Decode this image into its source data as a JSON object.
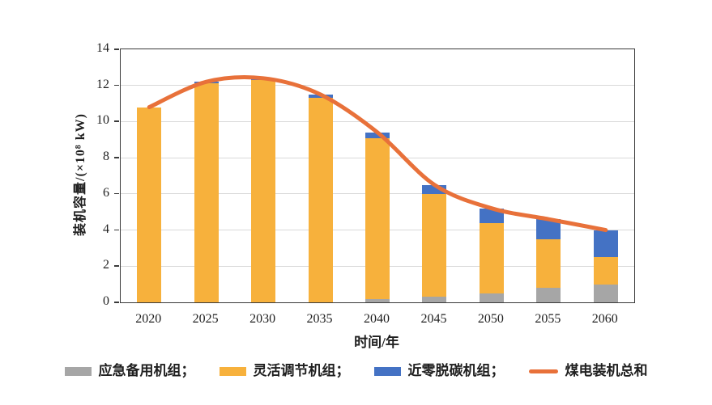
{
  "chart_data": {
    "type": "bar",
    "subtype": "stacked-bar-with-line",
    "categories": [
      "2020",
      "2025",
      "2030",
      "2035",
      "2040",
      "2045",
      "2050",
      "2055",
      "2060"
    ],
    "series": [
      {
        "name": "应急备用机组",
        "color": "#a6a6a6",
        "values": [
          0,
          0,
          0,
          0,
          0.2,
          0.3,
          0.5,
          0.8,
          1.0
        ]
      },
      {
        "name": "灵活调节机组",
        "color": "#f7b13c",
        "values": [
          10.8,
          12.1,
          12.3,
          11.3,
          8.9,
          5.7,
          3.9,
          2.7,
          1.5
        ]
      },
      {
        "name": "近零脱碳机组",
        "color": "#4472c4",
        "values": [
          0,
          0.1,
          0.1,
          0.2,
          0.3,
          0.5,
          0.8,
          1.1,
          1.5
        ]
      }
    ],
    "line_series": {
      "name": "煤电装机总和",
      "color": "#e8713a",
      "values": [
        10.8,
        12.2,
        12.4,
        11.5,
        9.4,
        6.5,
        5.2,
        4.6,
        4.0
      ]
    },
    "title": "",
    "xlabel": "时间/年",
    "ylabel": "装机容量/(×10⁸ kW)",
    "ylim": [
      0,
      14
    ],
    "ytick_step": 2,
    "y_tick_labels": [
      "0",
      "2",
      "4",
      "6",
      "8",
      "10",
      "12",
      "14"
    ],
    "grid": true,
    "grid_color": "#d9d9d9",
    "legend_position": "bottom"
  },
  "legend": {
    "items": [
      {
        "label": "应急备用机组；",
        "swatch": "gray-rect"
      },
      {
        "label": "灵活调节机组；",
        "swatch": "yellow-rect"
      },
      {
        "label": "近零脱碳机组；",
        "swatch": "blue-rect"
      },
      {
        "label": "煤电装机总和",
        "swatch": "orange-line"
      }
    ]
  }
}
